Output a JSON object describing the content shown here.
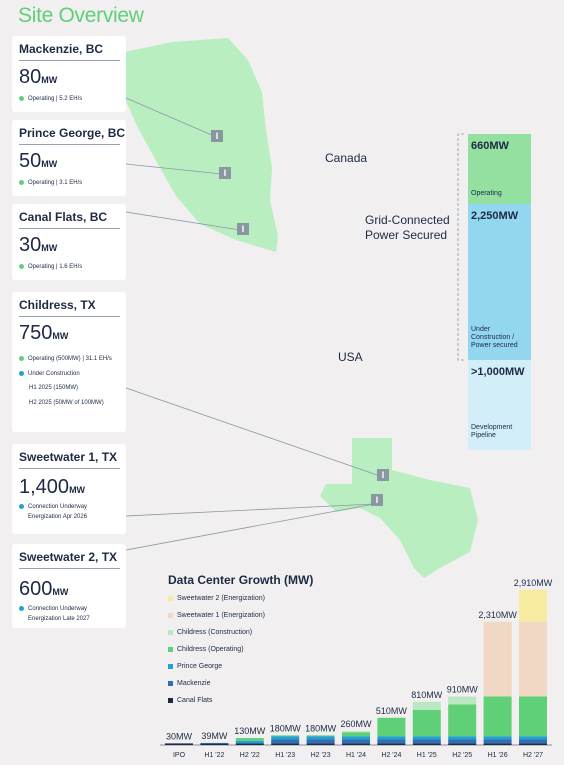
{
  "title": "Site Overview",
  "map": {
    "canada_label": "Canada",
    "usa_label": "USA",
    "grid_label_1": "Grid-Connected",
    "grid_label_2": "Power Secured",
    "marker_glyph": "I"
  },
  "sites": [
    {
      "name": "Mackenzie, BC",
      "capacity": "80",
      "unit": "MW",
      "line1": "Operating | 5.2 EH/s",
      "line1_color": "#5fcf78"
    },
    {
      "name": "Prince George, BC",
      "capacity": "50",
      "unit": "MW",
      "line1": "Operating | 3.1 EH/s",
      "line1_color": "#5fcf78"
    },
    {
      "name": "Canal Flats, BC",
      "capacity": "30",
      "unit": "MW",
      "line1": "Operating | 1.6 EH/s",
      "line1_color": "#5fcf78"
    },
    {
      "name": "Childress, TX",
      "capacity": "750",
      "unit": "MW",
      "line1": "Operating (500MW) | 31.1 EH/s",
      "line1_color": "#5fcf78",
      "line2": "Under Construction",
      "line2_color": "#1fa0d8",
      "line3": "H1 2025 (150MW)",
      "line4": "H2 2025 (50MW of 100MW)"
    },
    {
      "name": "Sweetwater 1, TX",
      "capacity": "1,400",
      "unit": "MW",
      "line1": "Connection Underway",
      "line1_color": "#1fa0d8",
      "line2": "Energization Apr 2026"
    },
    {
      "name": "Sweetwater 2, TX",
      "capacity": "600",
      "unit": "MW",
      "line1": "Connection Underway",
      "line1_color": "#1fa0d8",
      "line2": "Energization Late 2027"
    }
  ],
  "power_bar": [
    {
      "value": "660MW",
      "label": "Operating",
      "color": "#93e0a1"
    },
    {
      "value": "2,250MW",
      "label": "Under Construction / Power secured",
      "color": "#93d6f0"
    },
    {
      "value": ">1,000MW",
      "label": "Development Pipeline",
      "color": "#d2eef8"
    }
  ],
  "chart_data": {
    "type": "bar",
    "title": "Data Center Growth (MW)",
    "categories": [
      "IPO",
      "H1 '22",
      "H2 '22",
      "H1 '23",
      "H2 '23",
      "H1 '24",
      "H2 '24",
      "H1 '25",
      "H2 '25",
      "H1 '26",
      "H2 '27"
    ],
    "totals": [
      "30MW",
      "39MW",
      "130MW",
      "180MW",
      "180MW",
      "260MW",
      "510MW",
      "810MW",
      "910MW",
      "2,310MW",
      "2,910MW"
    ],
    "total_values": [
      30,
      39,
      130,
      180,
      180,
      260,
      510,
      810,
      910,
      2310,
      2910
    ],
    "series": [
      {
        "name": "Canal Flats",
        "color": "#1d2a44",
        "values": [
          30,
          30,
          30,
          30,
          30,
          30,
          30,
          30,
          30,
          30,
          30
        ]
      },
      {
        "name": "Mackenzie",
        "color": "#2f6fb5",
        "values": [
          0,
          0,
          0,
          80,
          80,
          80,
          80,
          80,
          80,
          80,
          80
        ]
      },
      {
        "name": "Prince George",
        "color": "#1fa0d8",
        "values": [
          0,
          9,
          50,
          50,
          50,
          50,
          50,
          50,
          50,
          50,
          50
        ]
      },
      {
        "name": "Childress (Operating)",
        "color": "#5fcf78",
        "values": [
          0,
          0,
          50,
          20,
          20,
          80,
          350,
          500,
          600,
          750,
          750
        ]
      },
      {
        "name": "Childress (Construction)",
        "color": "#b9e8c2",
        "values": [
          0,
          0,
          0,
          0,
          0,
          20,
          0,
          150,
          150,
          0,
          0
        ]
      },
      {
        "name": "Sweetwater 1 (Energization)",
        "color": "#f1d8c4",
        "values": [
          0,
          0,
          0,
          0,
          0,
          0,
          0,
          0,
          0,
          1400,
          1400
        ]
      },
      {
        "name": "Sweetwater 2 (Energization)",
        "color": "#f6eb9e",
        "values": [
          0,
          0,
          0,
          0,
          0,
          0,
          0,
          0,
          0,
          0,
          600
        ]
      }
    ],
    "ylim": [
      0,
      3000
    ]
  }
}
